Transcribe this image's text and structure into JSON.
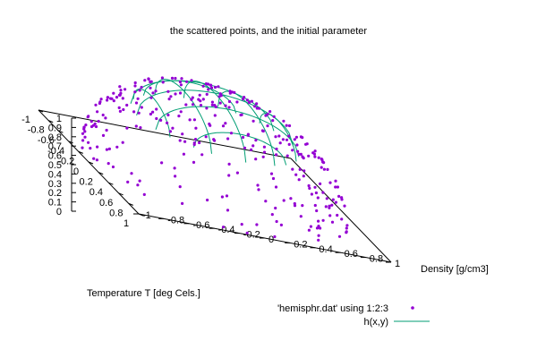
{
  "chart_data": {
    "type": "scatter",
    "title": "the scattered points, and the initial parameter",
    "xlabel": "Temperature T  [deg Cels.]",
    "ylabel": "Density [g/cm3]",
    "zlabel": "",
    "xlim": [
      -1,
      1
    ],
    "ylim": [
      -1,
      1
    ],
    "zlim": [
      0,
      1
    ],
    "x_ticks": [
      "-1",
      "-0.8",
      "-0.6",
      "-0.4",
      "-0.2",
      "0",
      "0.2",
      "0.4",
      "0.6",
      "0.8",
      "1"
    ],
    "y_ticks": [
      "-1",
      "-0.8",
      "-0.6",
      "-0.4",
      "-0.2",
      "0",
      "0.2",
      "0.4",
      "0.6",
      "0.8",
      "1"
    ],
    "z_ticks": [
      "0",
      "0.1",
      "0.2",
      "0.3",
      "0.4",
      "0.5",
      "0.6",
      "0.7",
      "0.8",
      "0.9",
      "1"
    ],
    "legend_position": "bottom-right",
    "series": [
      {
        "name": "'hemisphr.dat' using 1:2:3",
        "kind": "points",
        "color": "#9400d3",
        "description": "points scattered on the upper hemisphere z = sqrt(1 - x^2 - y^2)"
      },
      {
        "name": "h(x,y)",
        "kind": "surface",
        "color": "#009e73",
        "description": "fitted hemisphere surface with initial parameter, drawn as grid curves"
      }
    ]
  }
}
